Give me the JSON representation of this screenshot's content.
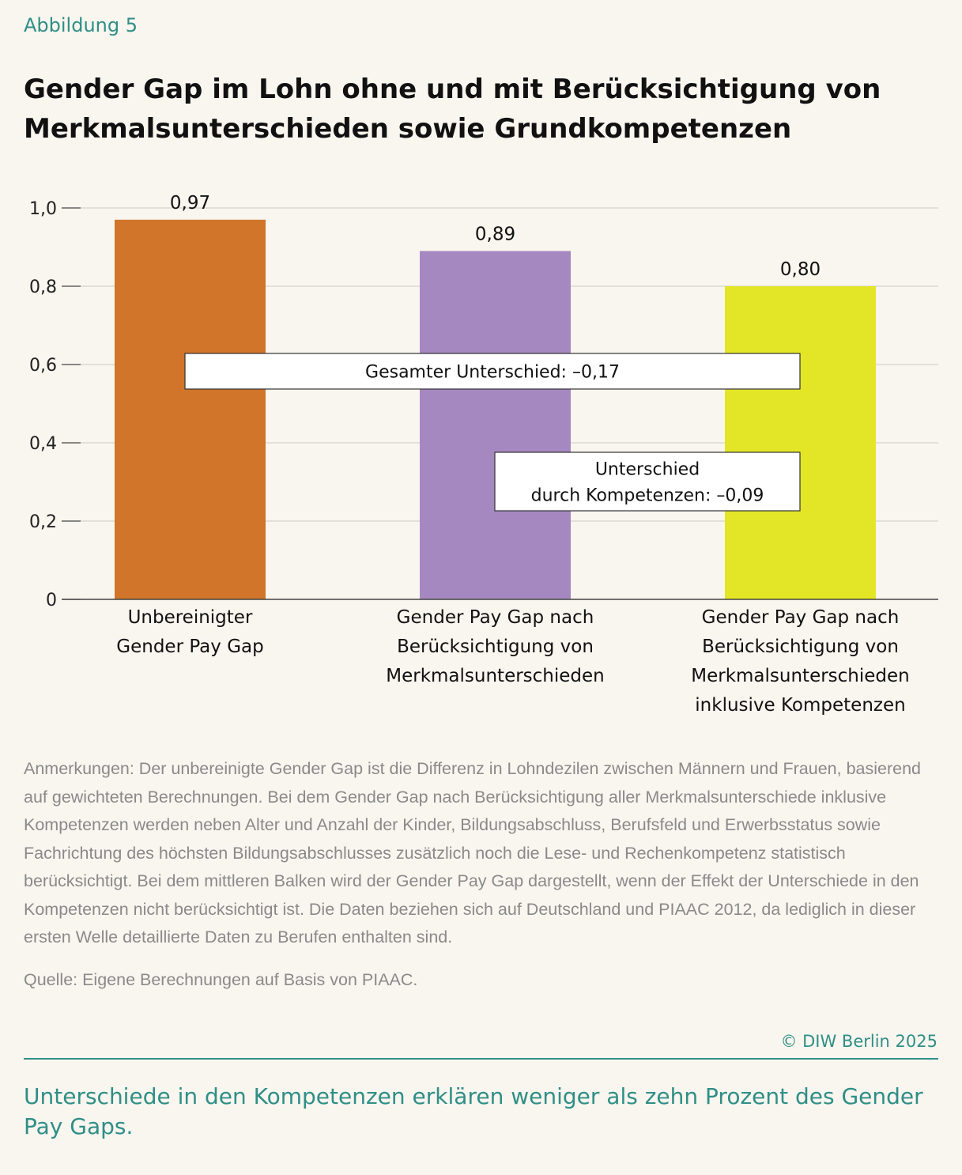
{
  "header": {
    "figure_label": "Abbildung 5",
    "title": "Gender Gap im Lohn ohne und mit Berücksichtigung von Merkmalsunterschieden sowie Grundkompetenzen"
  },
  "chart_data": {
    "type": "bar",
    "categories": [
      [
        "Unbereinigter",
        "Gender Pay Gap"
      ],
      [
        "Gender Pay Gap nach",
        "Berücksichtigung von",
        "Merkmalsunterschieden"
      ],
      [
        "Gender Pay Gap nach",
        "Berücksichtigung von",
        "Merkmalsunterschieden",
        "inklusive Kompetenzen"
      ]
    ],
    "values": [
      0.97,
      0.89,
      0.8
    ],
    "value_labels": [
      "0,97",
      "0,89",
      "0,80"
    ],
    "colors": [
      "#d07529",
      "#a688c0",
      "#e3e626"
    ],
    "ylim": [
      0,
      1.0
    ],
    "yticks": [
      0,
      0.2,
      0.4,
      0.6,
      0.8,
      1.0
    ],
    "ytick_labels": [
      "0",
      "0,2",
      "0,4",
      "0,6",
      "0,8",
      "1,0"
    ],
    "grid": true,
    "annotations": [
      {
        "lines": [
          "Gesamter Unterschied: –0,17"
        ]
      },
      {
        "lines": [
          "Unterschied",
          "durch Kompetenzen: –0,09"
        ]
      }
    ]
  },
  "notes": "Anmerkungen: Der unbereinigte Gender Gap ist die Differenz in Lohndezilen zwischen Männern und Frauen, basierend auf gewichteten Berechnungen. Bei dem Gender Gap nach Berücksichtigung aller Merkmalsunterschiede inklusive Kompetenzen werden neben Alter und Anzahl der Kinder, Bildungsabschluss, Berufsfeld und Erwerbsstatus sowie Fachrichtung des höchsten Bildungsabschlusses zusätzlich noch die Lese- und Rechenkompetenz statistisch berücksichtigt. Bei dem mittleren Balken wird der Gender Pay Gap dargestellt, wenn der Effekt der Unterschiede in den Kompetenzen nicht berücksichtigt ist. Die Daten beziehen sich auf Deutschland und PIAAC 2012, da lediglich in dieser ersten Welle detaillierte Daten zu Berufen enthalten sind.",
  "source": "Quelle: Eigene Berechnungen auf Basis von PIAAC.",
  "copyright": "© DIW Berlin 2025",
  "takeaway": "Unterschiede in den Kompetenzen erklären weniger als zehn Prozent des Gender Pay Gaps."
}
